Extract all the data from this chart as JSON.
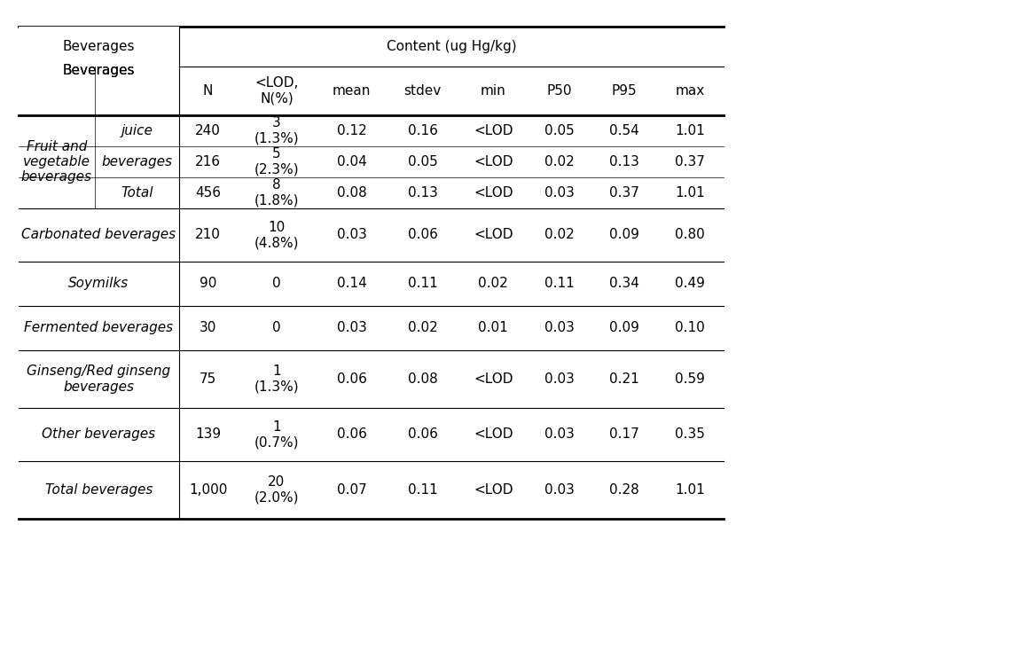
{
  "title": "Content (ug Hg/kg)",
  "col_headers": [
    "N",
    "<LOD,\nN(%)",
    "mean",
    "stdev",
    "min",
    "P50",
    "P95",
    "max"
  ],
  "bev_col_header": "Beverages",
  "rows": [
    {
      "group": "Fruit and\nvegetable\nbeverages",
      "subrows": [
        {
          "sub": "juice",
          "N": "240",
          "lod": "3\n(1.3%)",
          "mean": "0.12",
          "stdev": "0.16",
          "min": "<LOD",
          "p50": "0.05",
          "p95": "0.54",
          "max": "1.01"
        },
        {
          "sub": "beverages",
          "N": "216",
          "lod": "5\n(2.3%)",
          "mean": "0.04",
          "stdev": "0.05",
          "min": "<LOD",
          "p50": "0.02",
          "p95": "0.13",
          "max": "0.37"
        },
        {
          "sub": "Total",
          "N": "456",
          "lod": "8\n(1.8%)",
          "mean": "0.08",
          "stdev": "0.13",
          "min": "<LOD",
          "p50": "0.03",
          "p95": "0.37",
          "max": "1.01"
        }
      ]
    },
    {
      "group": "Carbonated beverages",
      "subrows": [
        {
          "sub": null,
          "N": "210",
          "lod": "10\n(4.8%)",
          "mean": "0.03",
          "stdev": "0.06",
          "min": "<LOD",
          "p50": "0.02",
          "p95": "0.09",
          "max": "0.80"
        }
      ]
    },
    {
      "group": "Soymilks",
      "subrows": [
        {
          "sub": null,
          "N": "90",
          "lod": "0",
          "mean": "0.14",
          "stdev": "0.11",
          "min": "0.02",
          "p50": "0.11",
          "p95": "0.34",
          "max": "0.49"
        }
      ]
    },
    {
      "group": "Fermented beverages",
      "subrows": [
        {
          "sub": null,
          "N": "30",
          "lod": "0",
          "mean": "0.03",
          "stdev": "0.02",
          "min": "0.01",
          "p50": "0.03",
          "p95": "0.09",
          "max": "0.10"
        }
      ]
    },
    {
      "group": "Ginseng/Red ginseng\nbeverages",
      "subrows": [
        {
          "sub": null,
          "N": "75",
          "lod": "1\n(1.3%)",
          "mean": "0.06",
          "stdev": "0.08",
          "min": "<LOD",
          "p50": "0.03",
          "p95": "0.21",
          "max": "0.59"
        }
      ]
    },
    {
      "group": "Other beverages",
      "subrows": [
        {
          "sub": null,
          "N": "139",
          "lod": "1\n(0.7%)",
          "mean": "0.06",
          "stdev": "0.06",
          "min": "<LOD",
          "p50": "0.03",
          "p95": "0.17",
          "max": "0.35"
        }
      ]
    },
    {
      "group": "Total beverages",
      "subrows": [
        {
          "sub": null,
          "N": "1,000",
          "lod": "20\n(2.0%)",
          "mean": "0.07",
          "stdev": "0.11",
          "min": "<LOD",
          "p50": "0.03",
          "p95": "0.28",
          "max": "1.01"
        }
      ]
    }
  ],
  "bg_color": "#ffffff",
  "text_color": "#000000",
  "line_color": "#000000",
  "font_size": 11,
  "header_font_size": 11
}
